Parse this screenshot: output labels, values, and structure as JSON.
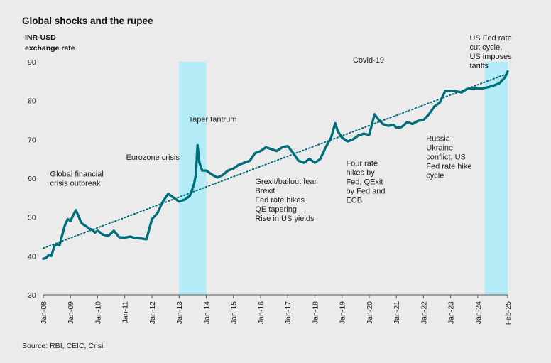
{
  "title": "Global shocks and the rupee",
  "source": "Source: RBI, CEIC, Crisil",
  "chart_data": {
    "type": "line",
    "title": "Global shocks and the rupee",
    "ylabel": [
      "INR-USD",
      "exchange rate"
    ],
    "ylim": [
      30,
      90
    ],
    "yticks": [
      30,
      40,
      50,
      60,
      70,
      80,
      90
    ],
    "xlim": [
      2008.0,
      2025.1
    ],
    "xticks": [
      {
        "label": "Jan-08",
        "x": 2008.0
      },
      {
        "label": "Jan-09",
        "x": 2009.0
      },
      {
        "label": "Jan-10",
        "x": 2010.0
      },
      {
        "label": "Jan-11",
        "x": 2011.0
      },
      {
        "label": "Jan-12",
        "x": 2012.0
      },
      {
        "label": "Jan-13",
        "x": 2013.0
      },
      {
        "label": "Jan-14",
        "x": 2014.0
      },
      {
        "label": "Jan-15",
        "x": 2015.0
      },
      {
        "label": "Jan-16",
        "x": 2016.0
      },
      {
        "label": "Jan-17",
        "x": 2017.0
      },
      {
        "label": "Jan-18",
        "x": 2018.0
      },
      {
        "label": "Jan-19",
        "x": 2019.0
      },
      {
        "label": "Jan-20",
        "x": 2020.0
      },
      {
        "label": "Jan-21",
        "x": 2021.0
      },
      {
        "label": "Jan-22",
        "x": 2022.0
      },
      {
        "label": "Jan-23",
        "x": 2023.0
      },
      {
        "label": "Jan-24",
        "x": 2024.0
      },
      {
        "label": "Feb-25",
        "x": 2025.1
      }
    ],
    "series": [
      {
        "name": "INR-USD exchange rate",
        "color": "#006d7a",
        "x": [
          2008.0,
          2008.1,
          2008.2,
          2008.3,
          2008.4,
          2008.5,
          2008.6,
          2008.7,
          2008.8,
          2008.9,
          2009.0,
          2009.1,
          2009.2,
          2009.3,
          2009.4,
          2009.5,
          2009.6,
          2009.7,
          2009.8,
          2009.9,
          2010.0,
          2010.2,
          2010.4,
          2010.6,
          2010.8,
          2011.0,
          2011.2,
          2011.4,
          2011.6,
          2011.8,
          2012.0,
          2012.2,
          2012.4,
          2012.6,
          2012.8,
          2013.0,
          2013.2,
          2013.4,
          2013.55,
          2013.62,
          2013.68,
          2013.75,
          2013.85,
          2014.0,
          2014.2,
          2014.4,
          2014.6,
          2014.8,
          2015.0,
          2015.2,
          2015.4,
          2015.6,
          2015.8,
          2016.0,
          2016.2,
          2016.4,
          2016.6,
          2016.8,
          2017.0,
          2017.2,
          2017.4,
          2017.6,
          2017.8,
          2018.0,
          2018.2,
          2018.4,
          2018.6,
          2018.75,
          2018.85,
          2019.0,
          2019.2,
          2019.4,
          2019.6,
          2019.8,
          2020.0,
          2020.2,
          2020.3,
          2020.5,
          2020.7,
          2020.9,
          2021.0,
          2021.2,
          2021.4,
          2021.6,
          2021.8,
          2022.0,
          2022.2,
          2022.4,
          2022.6,
          2022.8,
          2023.0,
          2023.2,
          2023.4,
          2023.6,
          2023.8,
          2024.0,
          2024.2,
          2024.4,
          2024.6,
          2024.8,
          2025.0,
          2025.1
        ],
        "values": [
          39.3,
          39.5,
          40.2,
          40.0,
          42.5,
          43.0,
          42.8,
          45.5,
          48.0,
          49.5,
          49.0,
          50.5,
          51.8,
          50.2,
          48.5,
          48.0,
          47.5,
          47.0,
          46.8,
          46.0,
          46.5,
          45.5,
          45.2,
          46.5,
          44.8,
          44.7,
          45.0,
          44.6,
          44.5,
          44.3,
          49.5,
          51.0,
          54.0,
          56.0,
          55.0,
          54.0,
          54.5,
          55.5,
          58.5,
          61.0,
          68.5,
          64.0,
          62.0,
          62.0,
          61.0,
          60.2,
          60.8,
          62.0,
          62.5,
          63.5,
          64.0,
          64.5,
          66.5,
          67.0,
          68.0,
          67.5,
          67.0,
          68.0,
          68.3,
          66.5,
          64.5,
          64.0,
          65.0,
          64.0,
          65.0,
          68.0,
          70.5,
          74.2,
          72.0,
          70.5,
          69.5,
          70.0,
          71.0,
          71.5,
          71.2,
          76.5,
          75.5,
          74.0,
          73.5,
          73.8,
          73.0,
          73.2,
          74.5,
          74.0,
          74.8,
          75.0,
          76.5,
          78.5,
          79.5,
          82.5,
          82.5,
          82.4,
          82.1,
          83.0,
          83.2,
          83.1,
          83.2,
          83.5,
          83.9,
          84.5,
          86.0,
          87.5
        ]
      },
      {
        "name": "Trend",
        "style": "dotted",
        "color": "#006d7a",
        "x": [
          2008.0,
          2025.1
        ],
        "values": [
          42.0,
          87.0
        ]
      }
    ],
    "highlight_bands": [
      {
        "x0": 2013.0,
        "x1": 2014.0,
        "color": "#b3ecf7"
      },
      {
        "x0": 2024.25,
        "x1": 2025.1,
        "color": "#b3ecf7"
      }
    ],
    "annotations": [
      {
        "lines": [
          "Global financial",
          "crisis outbreak"
        ],
        "x": 2008.25,
        "y": 60.5
      },
      {
        "lines": [
          "Eurozone crisis"
        ],
        "x": 2011.05,
        "y": 64.8
      },
      {
        "lines": [
          "Taper tantrum"
        ],
        "x": 2013.35,
        "y": 74.5
      },
      {
        "lines": [
          "Grexit/bailout fear",
          "Brexit",
          "Fed rate hikes",
          "QE tapering",
          "Rise in US yields"
        ],
        "x": 2015.8,
        "y": 58.5
      },
      {
        "lines": [
          "Covid-19"
        ],
        "x": 2019.4,
        "y": 89.8
      },
      {
        "lines": [
          "Four rate",
          "hikes by",
          "Fed, QExit",
          "by Fed and",
          "ECB"
        ],
        "x": 2019.15,
        "y": 63.2
      },
      {
        "lines": [
          "Russia-",
          "Ukraine",
          "conflict, US",
          "Fed rate hike",
          "cycle"
        ],
        "x": 2022.1,
        "y": 69.6
      },
      {
        "lines": [
          "US Fed rate",
          "cut cycle,",
          "US imposes",
          "tariffs"
        ],
        "x": 2023.7,
        "y": 95.5
      }
    ]
  }
}
